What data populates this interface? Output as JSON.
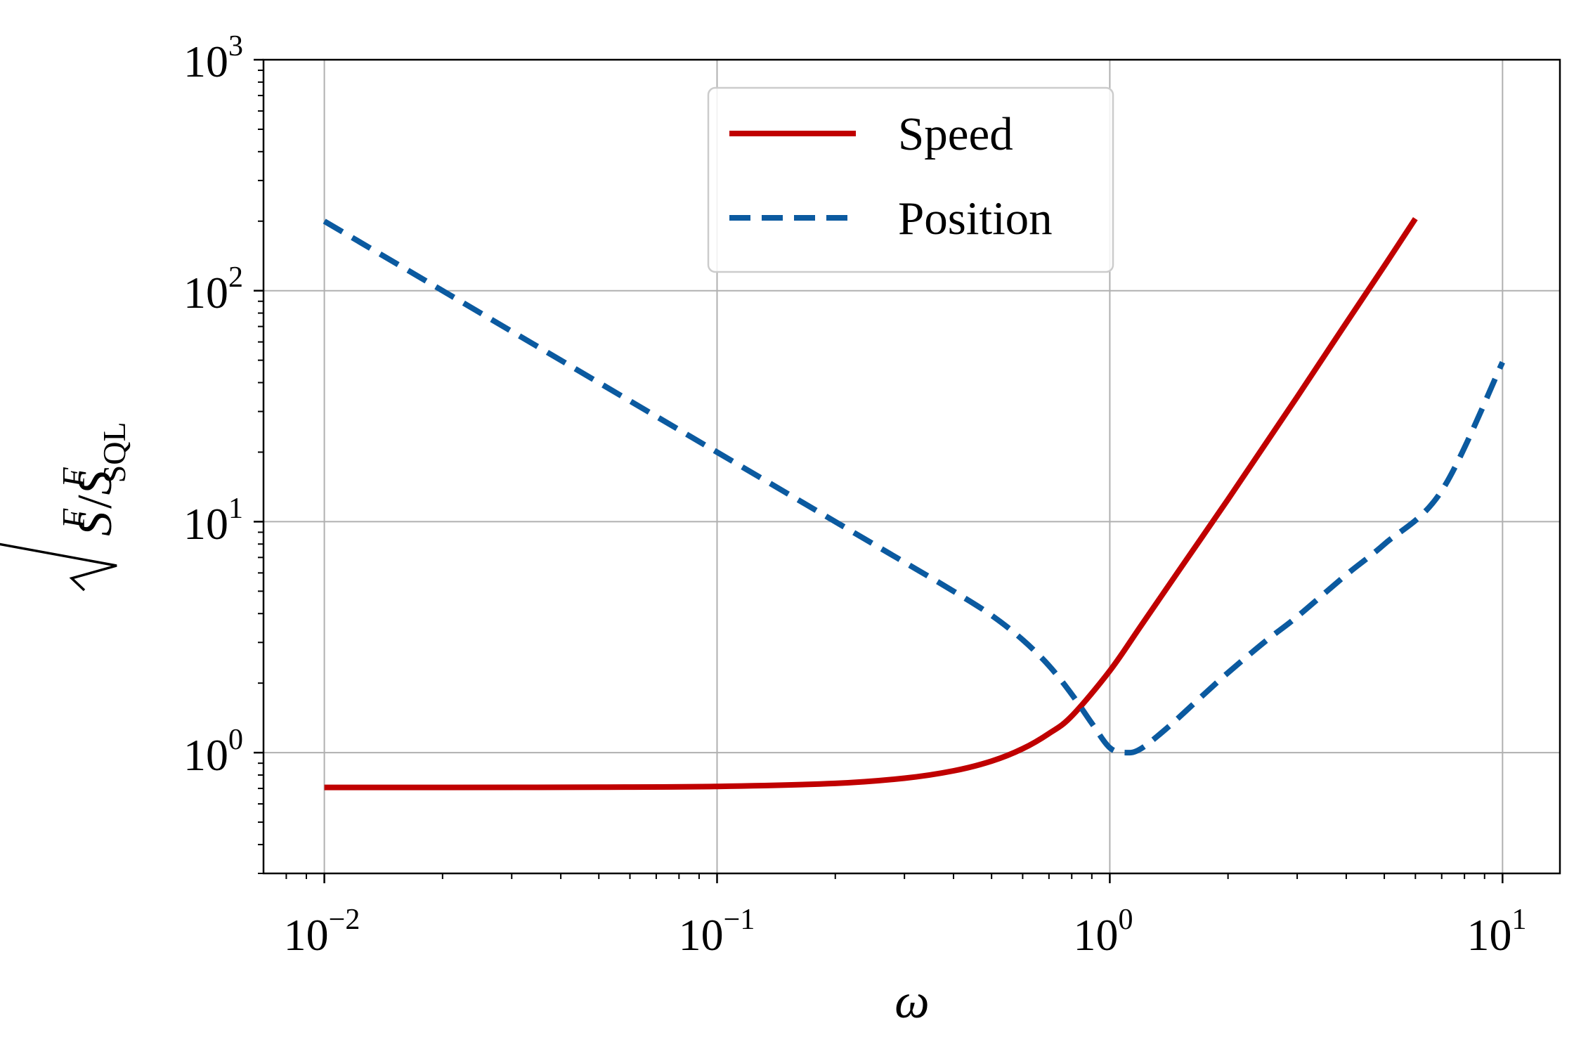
{
  "chart_data": {
    "type": "line",
    "xscale": "log",
    "yscale": "log",
    "xlim": [
      0.007,
      14
    ],
    "ylim": [
      0.3,
      1000
    ],
    "grid": true,
    "xlabel": "ω",
    "ylabel": {
      "prefix": "S",
      "sup1": "F",
      "slash": "/",
      "main2": "S",
      "sup2": "F",
      "sub2": "SQL"
    },
    "x_ticks": [
      {
        "base": "10",
        "exp": "−2",
        "value": 0.01
      },
      {
        "base": "10",
        "exp": "−1",
        "value": 0.1
      },
      {
        "base": "10",
        "exp": "0",
        "value": 1
      },
      {
        "base": "10",
        "exp": "1",
        "value": 10
      }
    ],
    "y_ticks": [
      {
        "base": "10",
        "exp": "0",
        "value": 1
      },
      {
        "base": "10",
        "exp": "1",
        "value": 10
      },
      {
        "base": "10",
        "exp": "2",
        "value": 100
      },
      {
        "base": "10",
        "exp": "3",
        "value": 1000
      }
    ],
    "legend_position": "upper-center",
    "series": [
      {
        "name": "Speed",
        "style": "solid",
        "color": "#C00000",
        "x": [
          0.01,
          0.02,
          0.05,
          0.1,
          0.2,
          0.3,
          0.4,
          0.5,
          0.6,
          0.7,
          0.8,
          1.0,
          1.2,
          1.5,
          2.0,
          2.5,
          3.0,
          3.5,
          4.0,
          5.0,
          6.0
        ],
        "y": [
          0.707,
          0.707,
          0.709,
          0.714,
          0.736,
          0.775,
          0.834,
          0.919,
          1.04,
          1.21,
          1.44,
          2.26,
          3.54,
          6.14,
          12.5,
          21.9,
          34.7,
          51.5,
          72.5,
          128,
          205
        ]
      },
      {
        "name": "Position",
        "style": "dashed",
        "color": "#0B5AA0",
        "x": [
          0.01,
          0.02,
          0.05,
          0.1,
          0.2,
          0.3,
          0.4,
          0.5,
          0.6,
          0.7,
          0.8,
          0.9,
          1.0,
          1.1,
          1.2,
          1.4,
          1.7,
          2.0,
          2.5,
          3.0,
          4.0,
          5.0,
          7.0,
          10.0
        ],
        "y": [
          200,
          100,
          40,
          20,
          10.0,
          6.67,
          5.0,
          3.93,
          3.08,
          2.38,
          1.79,
          1.34,
          1.05,
          1.0,
          1.04,
          1.28,
          1.73,
          2.22,
          3.05,
          3.88,
          5.89,
          7.99,
          13.6,
          49.0
        ]
      }
    ]
  }
}
